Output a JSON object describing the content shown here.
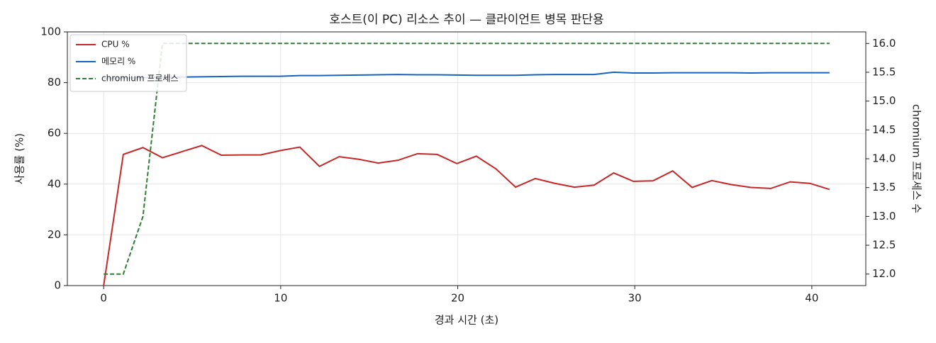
{
  "chart_data": {
    "type": "line",
    "title": "호스트(이 PC) 리소스 추이 — 클라이언트 병목 판단용",
    "xlabel": "경과 시간 (초)",
    "ylabel": "사용률 (%)",
    "y2label": "chromium 프로세스 수",
    "x": [
      0,
      1.11,
      2.22,
      3.32,
      4.43,
      5.54,
      6.65,
      7.76,
      8.86,
      9.97,
      11.08,
      12.19,
      13.3,
      14.41,
      15.51,
      16.62,
      17.73,
      18.84,
      19.95,
      21.05,
      22.16,
      23.27,
      24.38,
      25.49,
      26.59,
      27.7,
      28.81,
      29.92,
      31.03,
      32.14,
      33.24,
      34.35,
      35.46,
      36.57,
      37.68,
      38.78,
      39.89,
      41
    ],
    "series": [
      {
        "name": "CPU %",
        "color": "#c62828",
        "values": [
          0,
          51.7,
          54.4,
          50.4,
          52.8,
          55.2,
          51.4,
          51.5,
          51.5,
          53.2,
          54.6,
          47.0,
          50.8,
          49.8,
          48.3,
          49.4,
          52.0,
          51.7,
          48.1,
          51.0,
          46.0,
          38.8,
          42.2,
          40.3,
          38.8,
          39.6,
          44.4,
          41.1,
          41.3,
          45.2,
          38.7,
          41.4,
          39.8,
          38.7,
          38.3,
          40.9,
          40.3,
          37.9
        ]
      },
      {
        "name": "메모리 %",
        "color": "#1565c0",
        "values": [
          81.5,
          81.8,
          82.0,
          82.1,
          82.2,
          82.3,
          82.4,
          82.5,
          82.5,
          82.5,
          82.8,
          82.8,
          82.9,
          83.0,
          83.1,
          83.2,
          83.1,
          83.1,
          83.0,
          82.9,
          82.9,
          82.9,
          83.1,
          83.2,
          83.2,
          83.2,
          84.1,
          83.8,
          83.8,
          83.9,
          83.9,
          83.9,
          83.9,
          83.8,
          83.9,
          83.9,
          83.9,
          83.9
        ]
      },
      {
        "name": "chromium 프로세스",
        "color": "#2e7d32",
        "dashed": true,
        "axis": "y2",
        "values": [
          12,
          12,
          13,
          16,
          16,
          16,
          16,
          16,
          16,
          16,
          16,
          16,
          16,
          16,
          16,
          16,
          16,
          16,
          16,
          16,
          16,
          16,
          16,
          16,
          16,
          16,
          16,
          16,
          16,
          16,
          16,
          16,
          16,
          16,
          16,
          16,
          16,
          16
        ]
      }
    ],
    "xlim": [
      -2.05,
      43.05
    ],
    "xticks": [
      0,
      10,
      20,
      30,
      40
    ],
    "ylim": [
      0,
      100
    ],
    "yticks": [
      0,
      20,
      40,
      60,
      80,
      100
    ],
    "y2lim": [
      11.8,
      16.2
    ],
    "y2ticks": [
      {
        "value": 12,
        "label": "12.0"
      },
      12.5,
      {
        "value": 13,
        "label": "13.0"
      },
      13.5,
      {
        "value": 14,
        "label": "14.0"
      },
      14.5,
      {
        "value": 15,
        "label": "15.0"
      },
      15.5,
      {
        "value": 16,
        "label": "16.0"
      }
    ],
    "grid": true,
    "legend": "upper left"
  }
}
